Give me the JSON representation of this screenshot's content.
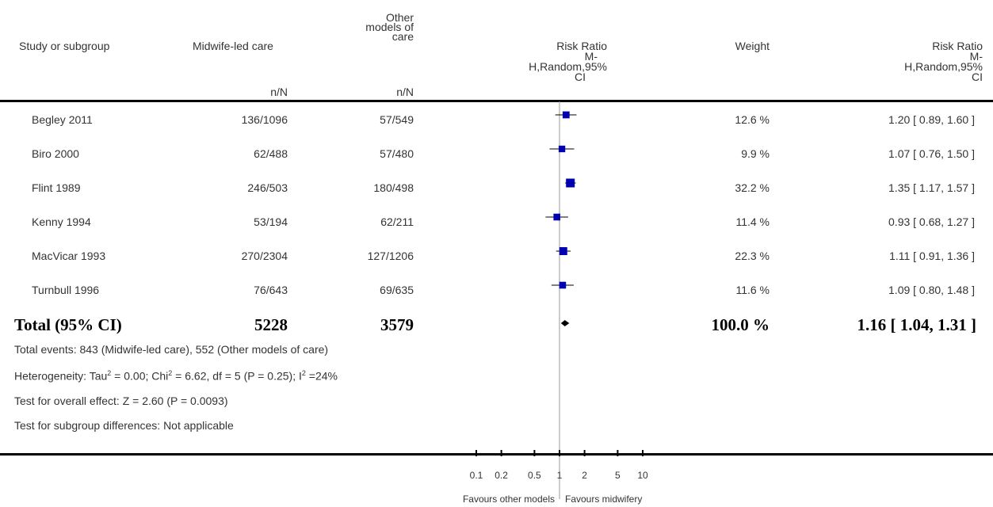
{
  "header": {
    "study": "Study or subgroup",
    "exp": "Midwife-led care",
    "ctrl_lines": [
      "Other",
      "models of",
      "care"
    ],
    "exp_sub": "n/N",
    "ctrl_sub": "n/N",
    "rr_lines": [
      "Risk Ratio",
      "M-",
      "H,Random,95%",
      "CI"
    ],
    "weight": "Weight",
    "rr2_lines": [
      "Risk Ratio",
      "M-",
      "H,Random,95%",
      "CI"
    ]
  },
  "rows": [
    {
      "study": "Begley 2011",
      "exp": "136/1096",
      "ctrl": "57/549",
      "weight": "12.6 %",
      "ci_text": "1.20 [ 0.89, 1.60 ]"
    },
    {
      "study": "Biro 2000",
      "exp": "62/488",
      "ctrl": "57/480",
      "weight": "9.9 %",
      "ci_text": "1.07 [ 0.76, 1.50 ]"
    },
    {
      "study": "Flint 1989",
      "exp": "246/503",
      "ctrl": "180/498",
      "weight": "32.2 %",
      "ci_text": "1.35 [ 1.17, 1.57 ]"
    },
    {
      "study": "Kenny 1994",
      "exp": "53/194",
      "ctrl": "62/211",
      "weight": "11.4 %",
      "ci_text": "0.93 [ 0.68, 1.27 ]"
    },
    {
      "study": "MacVicar 1993",
      "exp": "270/2304",
      "ctrl": "127/1206",
      "weight": "22.3 %",
      "ci_text": "1.11 [ 0.91, 1.36 ]"
    },
    {
      "study": "Turnbull 1996",
      "exp": "76/643",
      "ctrl": "69/635",
      "weight": "11.6 %",
      "ci_text": "1.09 [ 0.80, 1.48 ]"
    }
  ],
  "total": {
    "label": "Total (95% CI)",
    "exp": "5228",
    "ctrl": "3579",
    "weight": "100.0 %",
    "ci_text": "1.16 [ 1.04, 1.31 ]"
  },
  "notes": {
    "events": "Total events: 843 (Midwife-led care), 552 (Other models of care)",
    "heterogeneity_a": "Heterogeneity: Tau",
    "heterogeneity_b": " = 0.00; Chi",
    "heterogeneity_c": " = 6.62, df = 5 (P = 0.25); I",
    "heterogeneity_d": " =24%",
    "sup": "2",
    "overall": "Test for overall effect: Z = 2.60 (P = 0.0093)",
    "subgroup": "Test for subgroup differences: Not applicable"
  },
  "axis": {
    "favours_left": "Favours other models",
    "favours_right": "Favours midwifery"
  },
  "chart_data": {
    "type": "forest",
    "scale": "log",
    "xlim": [
      0.1,
      10
    ],
    "ticks": [
      0.1,
      0.2,
      0.5,
      1,
      2,
      5,
      10
    ],
    "tick_labels": [
      "0.1",
      "0.2",
      "0.5",
      "1",
      "2",
      "5",
      "10"
    ],
    "studies": [
      {
        "name": "Begley 2011",
        "rr": 1.2,
        "lo": 0.89,
        "hi": 1.6,
        "weight": 12.6
      },
      {
        "name": "Biro 2000",
        "rr": 1.07,
        "lo": 0.76,
        "hi": 1.5,
        "weight": 9.9
      },
      {
        "name": "Flint 1989",
        "rr": 1.35,
        "lo": 1.17,
        "hi": 1.57,
        "weight": 32.2
      },
      {
        "name": "Kenny 1994",
        "rr": 0.93,
        "lo": 0.68,
        "hi": 1.27,
        "weight": 11.4
      },
      {
        "name": "MacVicar 1993",
        "rr": 1.11,
        "lo": 0.91,
        "hi": 1.36,
        "weight": 22.3
      },
      {
        "name": "Turnbull 1996",
        "rr": 1.09,
        "lo": 0.8,
        "hi": 1.48,
        "weight": 11.6
      }
    ],
    "pooled": {
      "rr": 1.16,
      "lo": 1.04,
      "hi": 1.31
    },
    "colors": {
      "box": "#0000b0",
      "line": "#000000",
      "null_line": "#999999"
    }
  }
}
